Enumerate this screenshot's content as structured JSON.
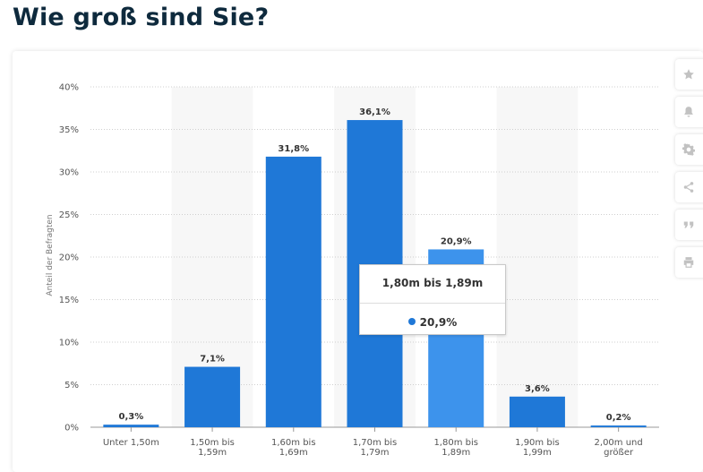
{
  "title": "Wie groß sind Sie?",
  "chart_data": {
    "type": "bar",
    "categories": [
      "Unter 1,50m",
      "1,50m bis 1,59m",
      "1,60m bis 1,69m",
      "1,70m bis 1,79m",
      "1,80m bis 1,89m",
      "1,90m bis 1,99m",
      "2,00m und größer"
    ],
    "category_lines": [
      [
        "Unter 1,50m"
      ],
      [
        "1,50m bis",
        "1,59m"
      ],
      [
        "1,60m bis",
        "1,69m"
      ],
      [
        "1,70m bis",
        "1,79m"
      ],
      [
        "1,80m bis",
        "1,89m"
      ],
      [
        "1,90m bis",
        "1,99m"
      ],
      [
        "2,00m und",
        "größer"
      ]
    ],
    "values": [
      0.3,
      7.1,
      31.8,
      36.1,
      20.9,
      3.6,
      0.2
    ],
    "value_labels": [
      "0,3%",
      "7,1%",
      "31,8%",
      "36,1%",
      "20,9%",
      "3,6%",
      "0,2%"
    ],
    "ylabel": "Anteil der Befragten",
    "ylim": [
      0,
      40
    ],
    "yticks": [
      0,
      5,
      10,
      15,
      20,
      25,
      30,
      35,
      40
    ],
    "ytick_labels": [
      "0%",
      "5%",
      "10%",
      "15%",
      "20%",
      "25%",
      "30%",
      "35%",
      "40%"
    ],
    "grid": true,
    "highlighted_index": 4,
    "colors": {
      "bar": "#1f78d7",
      "bar_highlight": "#3d93ec",
      "band": "#f7f7f7",
      "grid": "#cfcfcf"
    }
  },
  "tooltip": {
    "title": "1,80m bis 1,89m",
    "value": "20,9%"
  },
  "toolbar": {
    "buttons": [
      {
        "name": "star-icon"
      },
      {
        "name": "bell-icon"
      },
      {
        "name": "gear-icon"
      },
      {
        "name": "share-icon"
      },
      {
        "name": "quote-icon"
      },
      {
        "name": "print-icon"
      }
    ]
  }
}
